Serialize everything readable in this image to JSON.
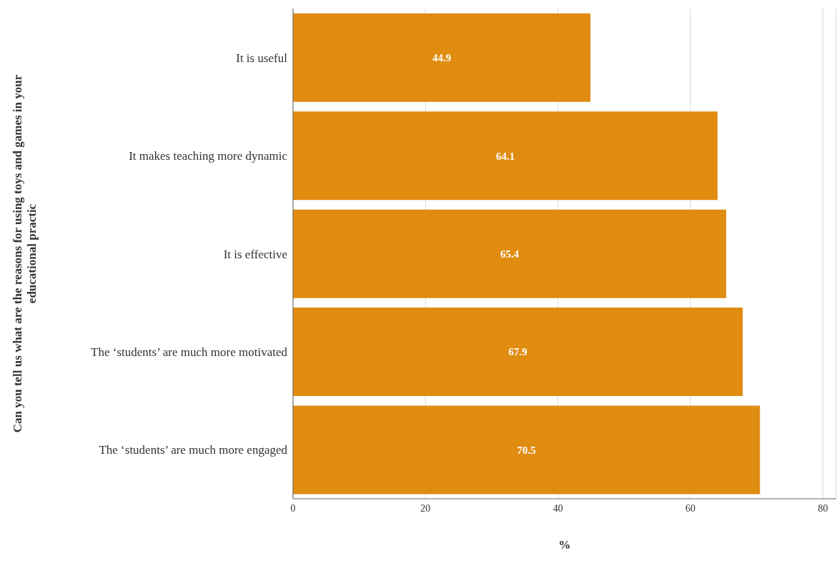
{
  "chart_data": {
    "type": "bar",
    "orientation": "horizontal",
    "categories": [
      "It is useful",
      "It makes teaching more dynamic",
      "It is effective",
      "The ‘students’ are much more motivated",
      "The ‘students’ are much more engaged"
    ],
    "values": [
      44.9,
      64.1,
      65.4,
      67.9,
      70.5
    ],
    "color": "#e08c10",
    "xlim": [
      0,
      82
    ],
    "xticks": [
      0,
      20,
      40,
      60,
      80
    ],
    "grid": "x",
    "data_labels": true,
    "xlabel": "%",
    "ylabel": "Can you tell us what are the reasons for using toys and games in your educational practic"
  }
}
